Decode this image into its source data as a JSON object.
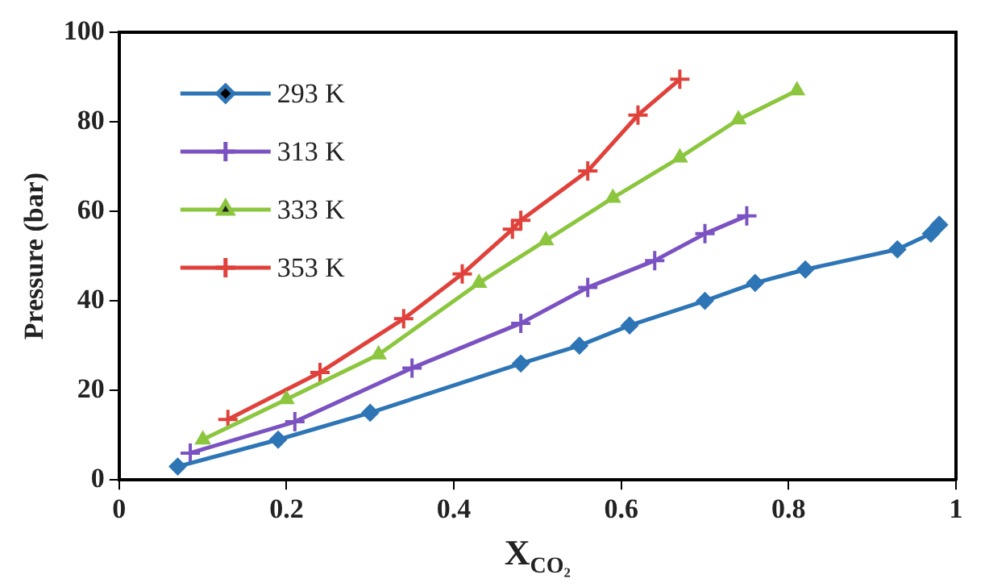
{
  "chart_data": {
    "type": "line",
    "xlabel": "X$_{CO₂}$",
    "ylabel": "Pressure (bar)",
    "xlim": [
      0,
      1
    ],
    "xticks": [
      0,
      0.2,
      0.4,
      0.6,
      0.8,
      1
    ],
    "ylim": [
      0,
      100
    ],
    "yticks": [
      0,
      20,
      40,
      60,
      80,
      100
    ],
    "grid": false,
    "legend": "top left",
    "line_style": "solid",
    "series": [
      {
        "name": "293 K",
        "color": "#2e75b6",
        "marker": "diamond",
        "x": [
          0.07,
          0.19,
          0.3,
          0.48,
          0.55,
          0.61,
          0.7,
          0.76,
          0.82,
          0.93,
          0.97,
          0.98
        ],
        "values": [
          3,
          9,
          15,
          26,
          30,
          34.5,
          40,
          44,
          47,
          51.5,
          55,
          57
        ]
      },
      {
        "name": "313 K",
        "color": "#7b52c1",
        "marker": "cross",
        "x": [
          0.085,
          0.21,
          0.35,
          0.48,
          0.56,
          0.64,
          0.7,
          0.75
        ],
        "values": [
          6,
          13,
          25,
          35,
          43,
          49,
          55,
          59
        ]
      },
      {
        "name": "333 K",
        "color": "#8cc63f",
        "marker": "triangle",
        "x": [
          0.1,
          0.2,
          0.31,
          0.43,
          0.51,
          0.59,
          0.67,
          0.74,
          0.81
        ],
        "values": [
          9,
          18,
          28,
          44,
          53.5,
          63,
          72,
          80.5,
          87
        ]
      },
      {
        "name": "353 K",
        "color": "#e0413a",
        "marker": "cross",
        "x": [
          0.13,
          0.24,
          0.34,
          0.41,
          0.47,
          0.48,
          0.56,
          0.62,
          0.67
        ],
        "values": [
          13.5,
          24,
          36,
          46,
          56,
          58,
          69,
          81.5,
          89.5
        ]
      }
    ]
  }
}
